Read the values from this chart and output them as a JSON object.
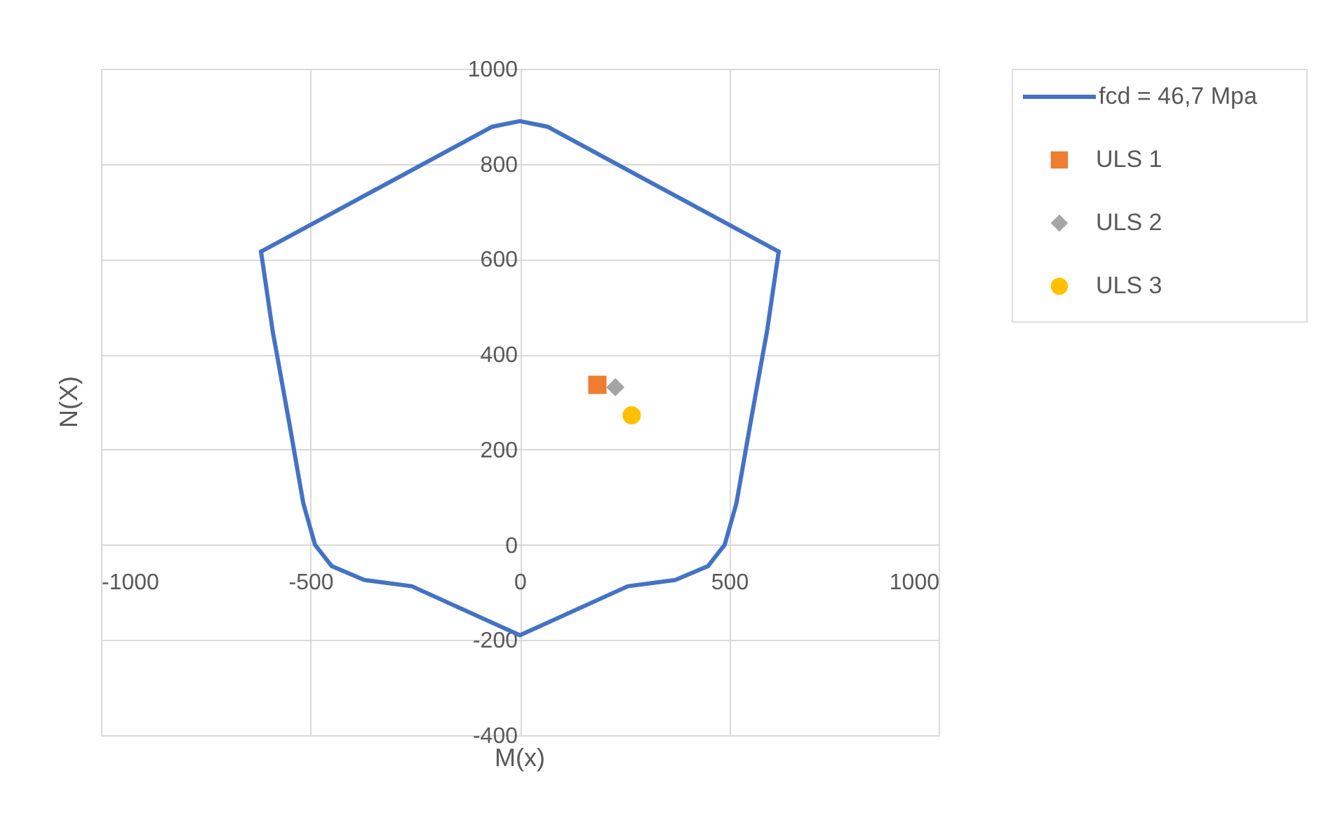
{
  "chart_data": {
    "type": "line",
    "xlabel": "M(x)",
    "ylabel": "N(X)",
    "xlim": [
      -1000,
      1000
    ],
    "xticks": [
      -1000,
      -500,
      0,
      500,
      1000
    ],
    "ylim": [
      -400,
      1000
    ],
    "yticks": [
      -400,
      -200,
      0,
      200,
      400,
      600,
      800,
      1000
    ],
    "grid": true,
    "legend": "right",
    "series": [
      {
        "name": "fcd = 46,7 Mpa",
        "color": "#4472c4",
        "marker": "none",
        "x": [
          -618,
          -300,
          -67,
          0,
          67,
          300,
          618
        ],
        "values": [
          616,
          767,
          878,
          890,
          878,
          767,
          616
        ]
      },
      {
        "color": "#4472c4",
        "marker": "none",
        "x": [
          -618,
          -590,
          -578,
          -550,
          -517,
          -489,
          -449,
          -371,
          -258,
          0,
          258,
          371,
          449,
          489,
          517,
          550,
          578,
          590,
          618
        ],
        "values": [
          616,
          448,
          390,
          253,
          87,
          0,
          -45,
          -74,
          -87,
          -190,
          -87,
          -74,
          -45,
          0,
          87,
          253,
          390,
          448,
          616
        ]
      },
      {
        "name": "ULS 1",
        "type": "scatter",
        "color": "#ed7d31",
        "marker": "square",
        "x": [
          185
        ],
        "values": [
          336
        ]
      },
      {
        "name": "ULS 2",
        "type": "scatter",
        "color": "#a5a5a5",
        "marker": "diamond",
        "x": [
          228
        ],
        "values": [
          331
        ]
      },
      {
        "name": "ULS 3",
        "type": "scatter",
        "color": "#ffc000",
        "marker": "circle",
        "x": [
          267
        ],
        "values": [
          272
        ]
      }
    ]
  }
}
